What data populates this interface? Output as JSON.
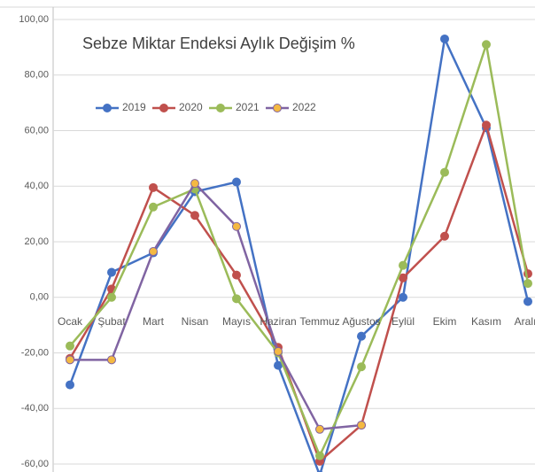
{
  "chart_data": {
    "type": "line",
    "title": "Sebze Miktar Endeksi Aylık Değişim %",
    "categories": [
      "Ocak",
      "Şubat",
      "Mart",
      "Nisan",
      "Mayıs",
      "Haziran",
      "Temmuz",
      "Ağustos",
      "Eylül",
      "Ekim",
      "Kasım",
      "Aralık"
    ],
    "series": [
      {
        "name": "2019",
        "color": "#4472c4",
        "marker_color": "#4472c4",
        "values": [
          -31.5,
          9,
          16,
          38,
          41.5,
          -24.5,
          -64,
          -14,
          0,
          93,
          61,
          -1.5
        ]
      },
      {
        "name": "2020",
        "color": "#c0504d",
        "marker_color": "#c0504d",
        "values": [
          -22,
          3,
          39.5,
          29.5,
          8,
          -18,
          -59,
          -46,
          7,
          22,
          62,
          8.5
        ]
      },
      {
        "name": "2021",
        "color": "#9bbb59",
        "marker_color": "#9bbb59",
        "values": [
          -17.5,
          0,
          32.5,
          39,
          -0.5,
          -20,
          -57,
          -25,
          11.5,
          45,
          91,
          5
        ]
      },
      {
        "name": "2022",
        "color": "#8064a2",
        "marker_color": "#f4b942",
        "values": [
          -22.5,
          -22.5,
          16.5,
          41,
          25.5,
          -19.5,
          -47.5,
          -46,
          null,
          null,
          null,
          null
        ]
      }
    ],
    "ylim": [
      -60,
      100
    ],
    "yticks": [
      {
        "value": -60,
        "label": "-60,00"
      },
      {
        "value": -40,
        "label": "-40,00"
      },
      {
        "value": -20,
        "label": "-20,00"
      },
      {
        "value": 0,
        "label": "0,00"
      },
      {
        "value": 20,
        "label": "20,00"
      },
      {
        "value": 40,
        "label": "40,00"
      },
      {
        "value": 60,
        "label": "60,00"
      },
      {
        "value": 80,
        "label": "80,00"
      },
      {
        "value": 100,
        "label": "100,00"
      }
    ],
    "grid": true,
    "legend": "top-left"
  }
}
